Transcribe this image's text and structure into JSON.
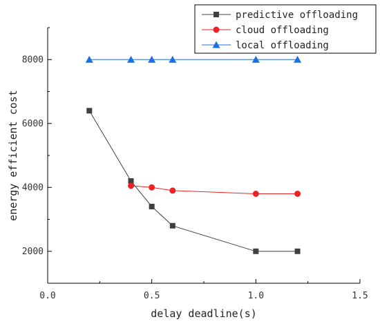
{
  "chart_data": {
    "type": "line",
    "title": "",
    "xlabel": "delay deadline(s)",
    "ylabel": "energy efficient cost",
    "xlim": [
      0.0,
      1.5
    ],
    "ylim": [
      1000,
      9000
    ],
    "x_ticks": [
      0.0,
      0.5,
      1.0,
      1.5
    ],
    "x_tick_labels": [
      "0.0",
      "0.5",
      "1.0",
      "1.5"
    ],
    "y_ticks": [
      2000,
      4000,
      6000,
      8000
    ],
    "y_tick_labels": [
      "2000",
      "4000",
      "6000",
      "8000"
    ],
    "grid": false,
    "legend_position": "top-right",
    "series": [
      {
        "name": "predictive offloading",
        "color": "#404040",
        "marker": "square",
        "x": [
          0.2,
          0.4,
          0.5,
          0.6,
          1.0,
          1.2
        ],
        "y": [
          6400,
          4200,
          3400,
          2800,
          2000,
          2000
        ]
      },
      {
        "name": "cloud offloading",
        "color": "#ee2222",
        "marker": "circle",
        "x": [
          0.4,
          0.5,
          0.6,
          1.0,
          1.2
        ],
        "y": [
          4050,
          4000,
          3900,
          3800,
          3800
        ]
      },
      {
        "name": "local offloading",
        "color": "#1f6fdc",
        "marker": "triangle",
        "x": [
          0.2,
          0.4,
          0.5,
          0.6,
          1.0,
          1.2
        ],
        "y": [
          8000,
          8000,
          8000,
          8000,
          8000,
          8000
        ]
      }
    ]
  }
}
